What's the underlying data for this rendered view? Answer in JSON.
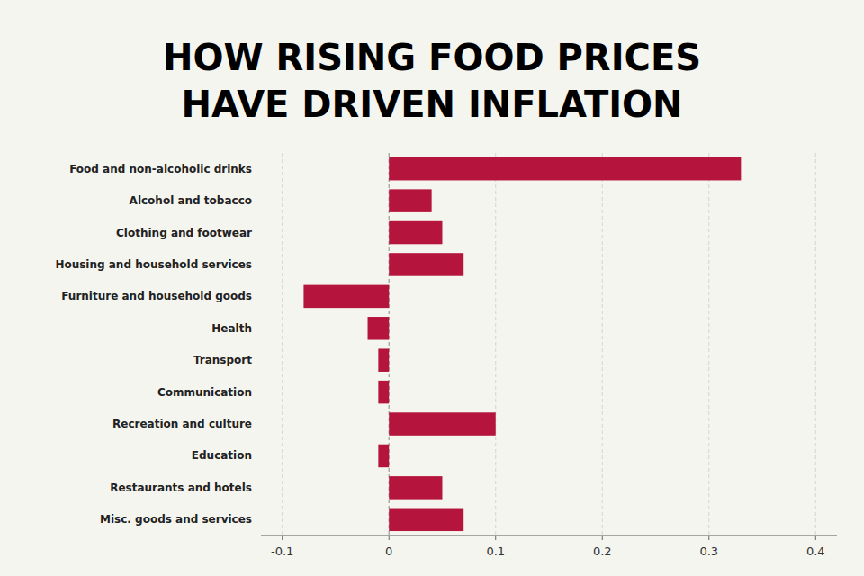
{
  "chart_data": {
    "type": "bar",
    "orientation": "horizontal",
    "title": "HOW RISING FOOD PRICES",
    "subtitle": "HAVE DRIVEN INFLATION",
    "categories": [
      "Food and non-alcoholic drinks",
      "Alcohol and tobacco",
      "Clothing and footwear",
      "Housing and household services",
      "Furniture and household goods",
      "Health",
      "Transport",
      "Communication",
      "Recreation and culture",
      "Education",
      "Restaurants and hotels",
      "Misc. goods and services"
    ],
    "values": [
      0.33,
      0.04,
      0.05,
      0.07,
      -0.08,
      -0.02,
      -0.01,
      -0.01,
      0.1,
      -0.01,
      0.05,
      0.07
    ],
    "color": "#b5143c",
    "xlim": [
      -0.12,
      0.42
    ],
    "xticks": [
      -0.1,
      0,
      0.1,
      0.2,
      0.3,
      0.4
    ],
    "grid": true
  }
}
